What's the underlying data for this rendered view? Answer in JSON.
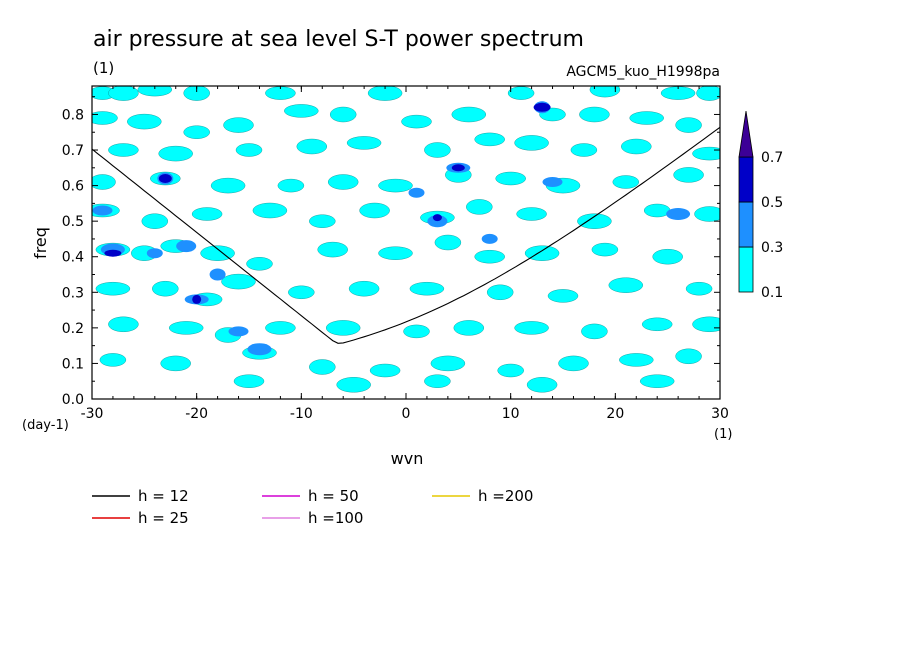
{
  "chart_data": {
    "type": "heatmap",
    "title": "air pressure at sea level S-T power spectrum",
    "title_units": "(1)",
    "subtitle": "AGCM5_kuo_H1998pa",
    "xlabel": "wvn",
    "ylabel": "freq",
    "x_units": "(1)",
    "y_units": "(day-1)",
    "xlim": [
      -30,
      30
    ],
    "ylim": [
      0,
      0.88
    ],
    "x_ticks": [
      "-30",
      "-20",
      "-10",
      "0",
      "10",
      "20",
      "30"
    ],
    "y_ticks": [
      "0.0",
      "0.1",
      "0.2",
      "0.3",
      "0.4",
      "0.5",
      "0.6",
      "0.7",
      "0.8"
    ],
    "contour_levels": [
      {
        "label": "0.1",
        "color": "#00ffff"
      },
      {
        "label": "0.3",
        "color": "#1e90ff"
      },
      {
        "label": "0.5",
        "color": "#0000c8"
      },
      {
        "label": "0.7",
        "color": "#3c0096"
      }
    ],
    "colorbar_labels": [
      "0.1",
      "0.3",
      "0.5",
      "0.7"
    ],
    "dispersion_curves": [
      {
        "name": "h = 12",
        "h": 12,
        "color": "#000000"
      },
      {
        "name": "h = 25",
        "h": 25,
        "color": "#e00000"
      },
      {
        "name": "h = 50",
        "h": 50,
        "color": "#d000d0"
      },
      {
        "name": "h =100",
        "h": 100,
        "color": "#e080e0"
      },
      {
        "name": "h =200",
        "h": 200,
        "color": "#e6c800"
      }
    ],
    "blobs": [
      {
        "x": -29,
        "y": 0.86,
        "level": 1
      },
      {
        "x": -27,
        "y": 0.86,
        "level": 1
      },
      {
        "x": -24,
        "y": 0.87,
        "level": 1
      },
      {
        "x": -20,
        "y": 0.86,
        "level": 1
      },
      {
        "x": -12,
        "y": 0.86,
        "level": 1
      },
      {
        "x": -2,
        "y": 0.86,
        "level": 1
      },
      {
        "x": 11,
        "y": 0.86,
        "level": 1
      },
      {
        "x": 19,
        "y": 0.87,
        "level": 1
      },
      {
        "x": 26,
        "y": 0.86,
        "level": 1
      },
      {
        "x": 29,
        "y": 0.86,
        "level": 1
      },
      {
        "x": -29,
        "y": 0.79,
        "level": 1
      },
      {
        "x": -25,
        "y": 0.78,
        "level": 1
      },
      {
        "x": -20,
        "y": 0.75,
        "level": 1
      },
      {
        "x": -16,
        "y": 0.77,
        "level": 1
      },
      {
        "x": -10,
        "y": 0.81,
        "level": 1
      },
      {
        "x": -6,
        "y": 0.8,
        "level": 1
      },
      {
        "x": 1,
        "y": 0.78,
        "level": 1
      },
      {
        "x": 6,
        "y": 0.8,
        "level": 1
      },
      {
        "x": 14,
        "y": 0.8,
        "level": 1
      },
      {
        "x": 18,
        "y": 0.8,
        "level": 1
      },
      {
        "x": 23,
        "y": 0.79,
        "level": 1
      },
      {
        "x": 27,
        "y": 0.77,
        "level": 1
      },
      {
        "x": -27,
        "y": 0.7,
        "level": 1
      },
      {
        "x": -22,
        "y": 0.69,
        "level": 1
      },
      {
        "x": -15,
        "y": 0.7,
        "level": 1
      },
      {
        "x": -9,
        "y": 0.71,
        "level": 1
      },
      {
        "x": -4,
        "y": 0.72,
        "level": 1
      },
      {
        "x": 3,
        "y": 0.7,
        "level": 1
      },
      {
        "x": 8,
        "y": 0.73,
        "level": 1
      },
      {
        "x": 12,
        "y": 0.72,
        "level": 1
      },
      {
        "x": 17,
        "y": 0.7,
        "level": 1
      },
      {
        "x": 22,
        "y": 0.71,
        "level": 1
      },
      {
        "x": 29,
        "y": 0.69,
        "level": 1
      },
      {
        "x": -29,
        "y": 0.61,
        "level": 1
      },
      {
        "x": -23,
        "y": 0.62,
        "level": 1
      },
      {
        "x": -17,
        "y": 0.6,
        "level": 1
      },
      {
        "x": -11,
        "y": 0.6,
        "level": 1
      },
      {
        "x": -6,
        "y": 0.61,
        "level": 1
      },
      {
        "x": -1,
        "y": 0.6,
        "level": 1
      },
      {
        "x": 5,
        "y": 0.63,
        "level": 1
      },
      {
        "x": 10,
        "y": 0.62,
        "level": 1
      },
      {
        "x": 15,
        "y": 0.6,
        "level": 1
      },
      {
        "x": 21,
        "y": 0.61,
        "level": 1
      },
      {
        "x": 27,
        "y": 0.63,
        "level": 1
      },
      {
        "x": -29,
        "y": 0.53,
        "level": 1
      },
      {
        "x": -24,
        "y": 0.5,
        "level": 1
      },
      {
        "x": -19,
        "y": 0.52,
        "level": 1
      },
      {
        "x": -13,
        "y": 0.53,
        "level": 1
      },
      {
        "x": -8,
        "y": 0.5,
        "level": 1
      },
      {
        "x": -3,
        "y": 0.53,
        "level": 1
      },
      {
        "x": 3,
        "y": 0.51,
        "level": 1
      },
      {
        "x": 7,
        "y": 0.54,
        "level": 1
      },
      {
        "x": 12,
        "y": 0.52,
        "level": 1
      },
      {
        "x": 18,
        "y": 0.5,
        "level": 1
      },
      {
        "x": 24,
        "y": 0.53,
        "level": 1
      },
      {
        "x": 29,
        "y": 0.52,
        "level": 1
      },
      {
        "x": -28,
        "y": 0.42,
        "level": 1
      },
      {
        "x": -25,
        "y": 0.41,
        "level": 1
      },
      {
        "x": -22,
        "y": 0.43,
        "level": 1
      },
      {
        "x": -18,
        "y": 0.41,
        "level": 1
      },
      {
        "x": -14,
        "y": 0.38,
        "level": 1
      },
      {
        "x": -7,
        "y": 0.42,
        "level": 1
      },
      {
        "x": -1,
        "y": 0.41,
        "level": 1
      },
      {
        "x": 4,
        "y": 0.44,
        "level": 1
      },
      {
        "x": 8,
        "y": 0.4,
        "level": 1
      },
      {
        "x": 13,
        "y": 0.41,
        "level": 1
      },
      {
        "x": 19,
        "y": 0.42,
        "level": 1
      },
      {
        "x": 25,
        "y": 0.4,
        "level": 1
      },
      {
        "x": -28,
        "y": 0.31,
        "level": 1
      },
      {
        "x": -23,
        "y": 0.31,
        "level": 1
      },
      {
        "x": -19,
        "y": 0.28,
        "level": 1
      },
      {
        "x": -16,
        "y": 0.33,
        "level": 1
      },
      {
        "x": -10,
        "y": 0.3,
        "level": 1
      },
      {
        "x": -4,
        "y": 0.31,
        "level": 1
      },
      {
        "x": 2,
        "y": 0.31,
        "level": 1
      },
      {
        "x": 9,
        "y": 0.3,
        "level": 1
      },
      {
        "x": 15,
        "y": 0.29,
        "level": 1
      },
      {
        "x": 21,
        "y": 0.32,
        "level": 1
      },
      {
        "x": 28,
        "y": 0.31,
        "level": 1
      },
      {
        "x": -27,
        "y": 0.21,
        "level": 1
      },
      {
        "x": -21,
        "y": 0.2,
        "level": 1
      },
      {
        "x": -17,
        "y": 0.18,
        "level": 1
      },
      {
        "x": -12,
        "y": 0.2,
        "level": 1
      },
      {
        "x": -6,
        "y": 0.2,
        "level": 1
      },
      {
        "x": 1,
        "y": 0.19,
        "level": 1
      },
      {
        "x": 6,
        "y": 0.2,
        "level": 1
      },
      {
        "x": 12,
        "y": 0.2,
        "level": 1
      },
      {
        "x": 18,
        "y": 0.19,
        "level": 1
      },
      {
        "x": 24,
        "y": 0.21,
        "level": 1
      },
      {
        "x": 29,
        "y": 0.21,
        "level": 1
      },
      {
        "x": -28,
        "y": 0.11,
        "level": 1
      },
      {
        "x": -22,
        "y": 0.1,
        "level": 1
      },
      {
        "x": -14,
        "y": 0.13,
        "level": 1
      },
      {
        "x": -8,
        "y": 0.09,
        "level": 1
      },
      {
        "x": -2,
        "y": 0.08,
        "level": 1
      },
      {
        "x": 4,
        "y": 0.1,
        "level": 1
      },
      {
        "x": 10,
        "y": 0.08,
        "level": 1
      },
      {
        "x": 16,
        "y": 0.1,
        "level": 1
      },
      {
        "x": 22,
        "y": 0.11,
        "level": 1
      },
      {
        "x": 27,
        "y": 0.12,
        "level": 1
      },
      {
        "x": -15,
        "y": 0.05,
        "level": 1
      },
      {
        "x": -5,
        "y": 0.04,
        "level": 1
      },
      {
        "x": 3,
        "y": 0.05,
        "level": 1
      },
      {
        "x": 13,
        "y": 0.04,
        "level": 1
      },
      {
        "x": 24,
        "y": 0.05,
        "level": 1
      },
      {
        "x": -23,
        "y": 0.62,
        "level": 2
      },
      {
        "x": -29,
        "y": 0.53,
        "level": 2
      },
      {
        "x": -28,
        "y": 0.42,
        "level": 2
      },
      {
        "x": -24,
        "y": 0.41,
        "level": 2
      },
      {
        "x": -21,
        "y": 0.43,
        "level": 2
      },
      {
        "x": -20,
        "y": 0.28,
        "level": 2
      },
      {
        "x": -18,
        "y": 0.35,
        "level": 2
      },
      {
        "x": -16,
        "y": 0.19,
        "level": 2
      },
      {
        "x": -14,
        "y": 0.14,
        "level": 2
      },
      {
        "x": 1,
        "y": 0.58,
        "level": 2
      },
      {
        "x": 3,
        "y": 0.5,
        "level": 2
      },
      {
        "x": 5,
        "y": 0.65,
        "level": 2
      },
      {
        "x": 13,
        "y": 0.82,
        "level": 2
      },
      {
        "x": 14,
        "y": 0.61,
        "level": 2
      },
      {
        "x": 26,
        "y": 0.52,
        "level": 2
      },
      {
        "x": 8,
        "y": 0.45,
        "level": 2
      },
      {
        "x": -23,
        "y": 0.62,
        "level": 3
      },
      {
        "x": -28,
        "y": 0.41,
        "level": 3
      },
      {
        "x": -20,
        "y": 0.28,
        "level": 3
      },
      {
        "x": 5,
        "y": 0.65,
        "level": 3
      },
      {
        "x": 13,
        "y": 0.82,
        "level": 3
      },
      {
        "x": 3,
        "y": 0.51,
        "level": 3
      }
    ]
  }
}
